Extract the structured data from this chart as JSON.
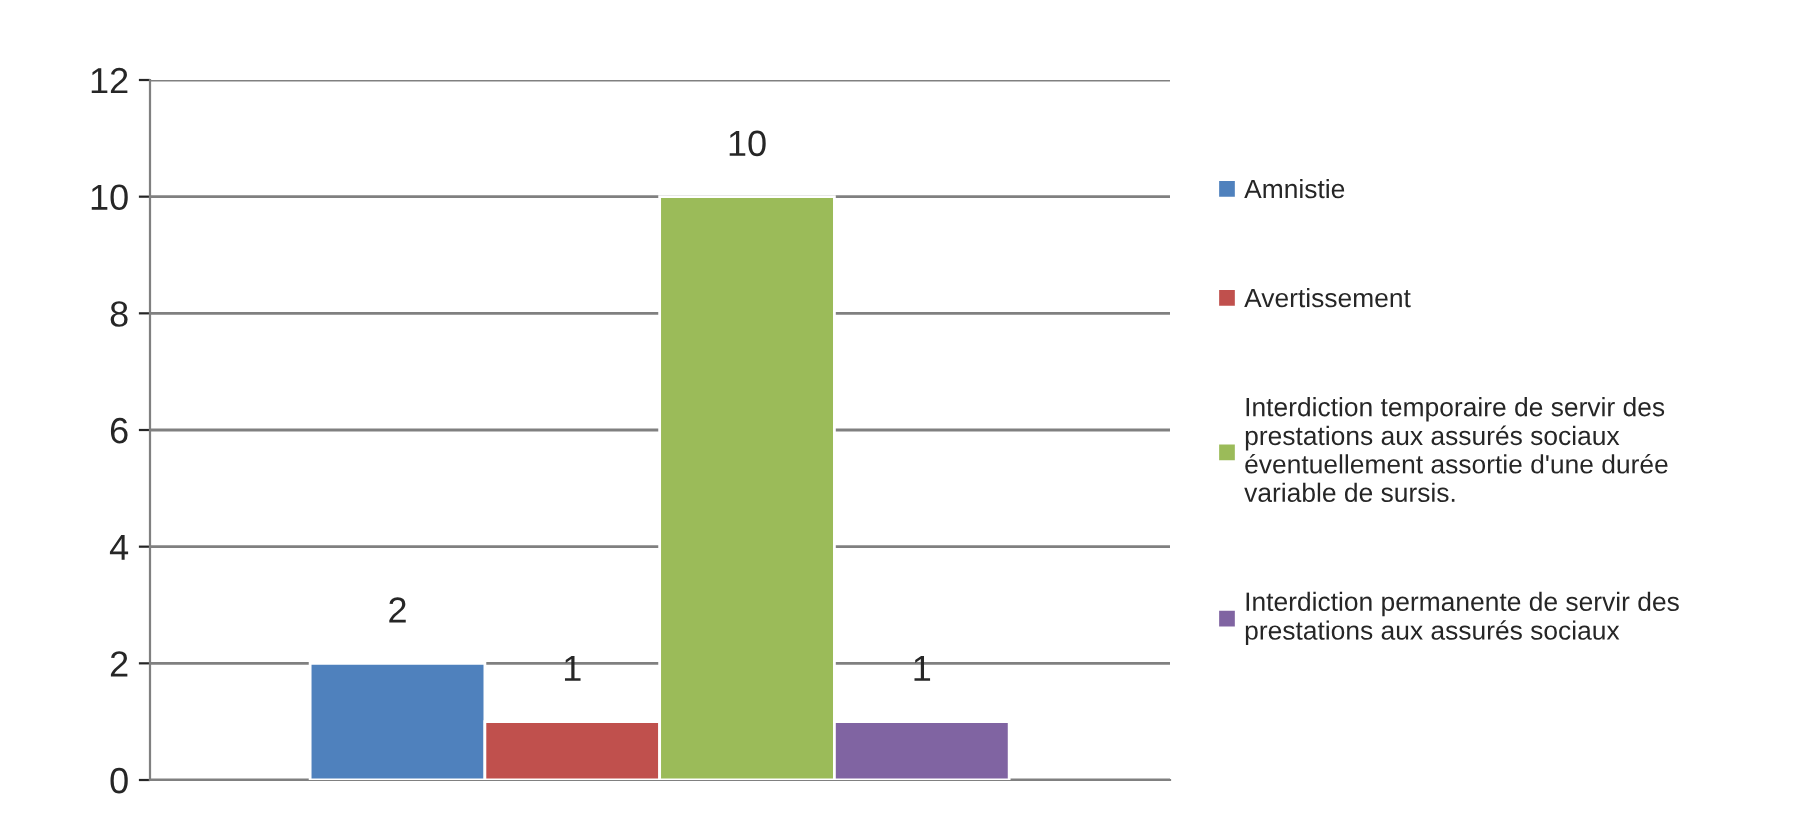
{
  "chart_data": {
    "type": "bar",
    "categories": [
      null
    ],
    "series": [
      {
        "name": "Amnistie",
        "color": "#4f81bd",
        "values": [
          2
        ]
      },
      {
        "name": "Avertissement",
        "color": "#c0504d",
        "values": [
          1
        ]
      },
      {
        "name": "Interdiction temporaire de servir des prestations aux assurés sociaux éventuellement assortie d'une durée variable de sursis.",
        "color": "#9bbb59",
        "values": [
          10
        ]
      },
      {
        "name": "Interdiction permanente de servir des prestations aux assurés sociaux",
        "color": "#8064a2",
        "values": [
          1
        ]
      }
    ],
    "ylim": [
      0,
      12
    ],
    "yticks": [
      0,
      2,
      4,
      6,
      8,
      10,
      12
    ],
    "grid": "y",
    "legend": "right",
    "data_labels": true
  }
}
